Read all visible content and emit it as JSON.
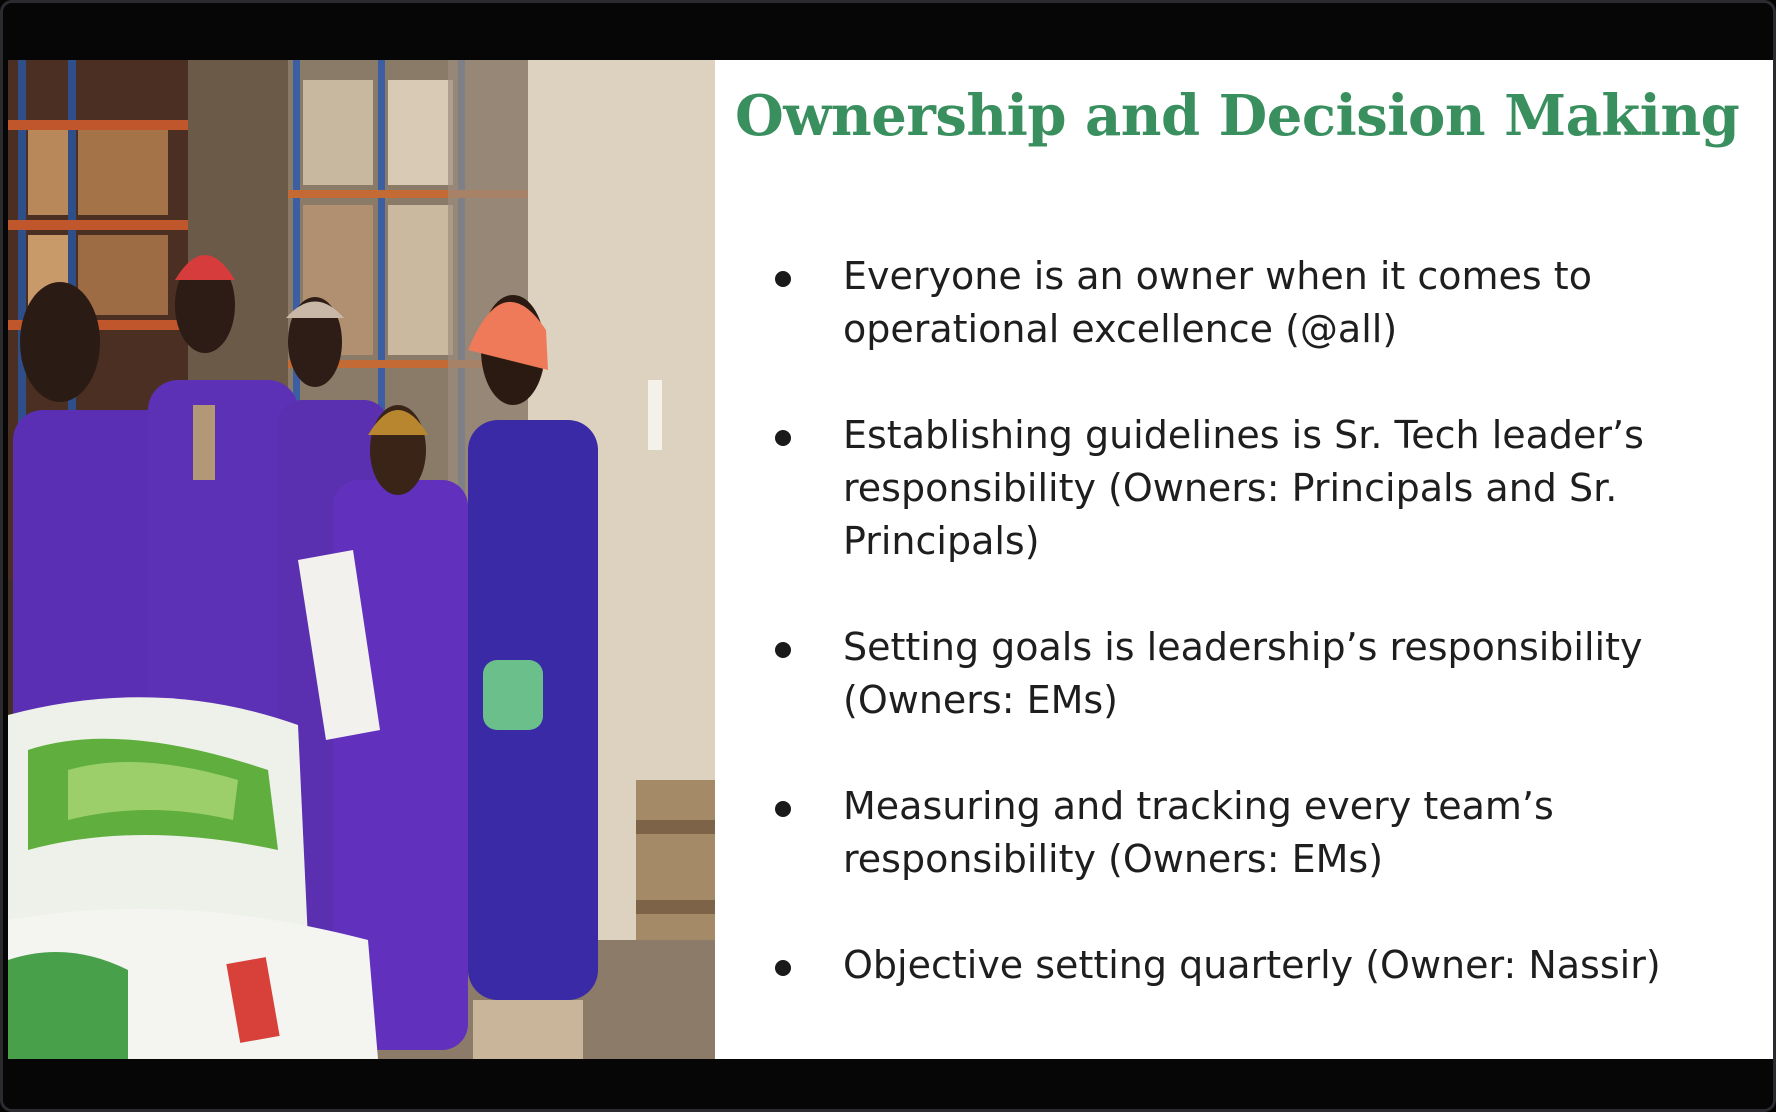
{
  "slide": {
    "title": "Ownership and Decision Making",
    "bullets": [
      "Everyone is an owner when it comes to operational excellence (@all)",
      "Establishing guidelines is Sr. Tech leader’s responsibility (Owners: Principals and Sr. Principals)",
      "Setting goals is leadership’s responsibility (Owners: EMs)",
      "Measuring and tracking every team’s responsibility (Owners: EMs)",
      "Objective setting quarterly (Owner: Nassir)"
    ]
  },
  "colors": {
    "title": "#3a8f5f",
    "uniform": "#5b2fb3",
    "cap": "#d63c3c",
    "background": "#060606"
  }
}
